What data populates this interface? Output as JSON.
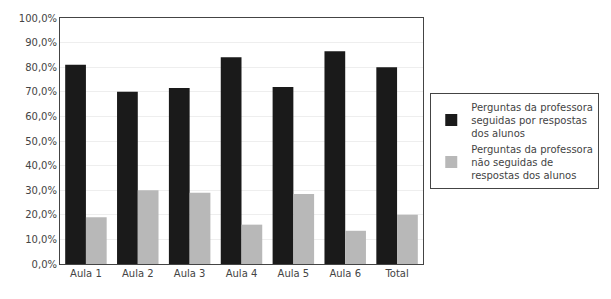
{
  "chart_data": {
    "type": "bar",
    "categories": [
      "Aula 1",
      "Aula 2",
      "Aula 3",
      "Aula 4",
      "Aula 5",
      "Aula 6",
      "Total"
    ],
    "series": [
      {
        "name": "Perguntas da professora\nseguidas por respostas\ndos alunos",
        "color": "#1a1a1a",
        "values": [
          0.81,
          0.7,
          0.715,
          0.84,
          0.72,
          0.865,
          0.8
        ]
      },
      {
        "name": "Perguntas da professora\nnão seguidas de\nrespostas dos alunos",
        "color": "#b8b8b8",
        "values": [
          0.19,
          0.3,
          0.29,
          0.16,
          0.285,
          0.135,
          0.2
        ]
      }
    ],
    "ylim": [
      0,
      1.0
    ],
    "yticks": [
      {
        "value": 0.0,
        "label": "0,0%"
      },
      {
        "value": 0.1,
        "label": "10,0%"
      },
      {
        "value": 0.2,
        "label": "20,0%"
      },
      {
        "value": 0.3,
        "label": "30,0%"
      },
      {
        "value": 0.4,
        "label": "40,0%"
      },
      {
        "value": 0.5,
        "label": "50,0%"
      },
      {
        "value": 0.6,
        "label": "60,0%"
      },
      {
        "value": 0.7,
        "label": "70,0%"
      },
      {
        "value": 0.8,
        "label": "80,0%"
      },
      {
        "value": 0.9,
        "label": "90,0%"
      },
      {
        "value": 1.0,
        "label": "100,0%"
      }
    ],
    "grid": true,
    "legend": "right"
  }
}
